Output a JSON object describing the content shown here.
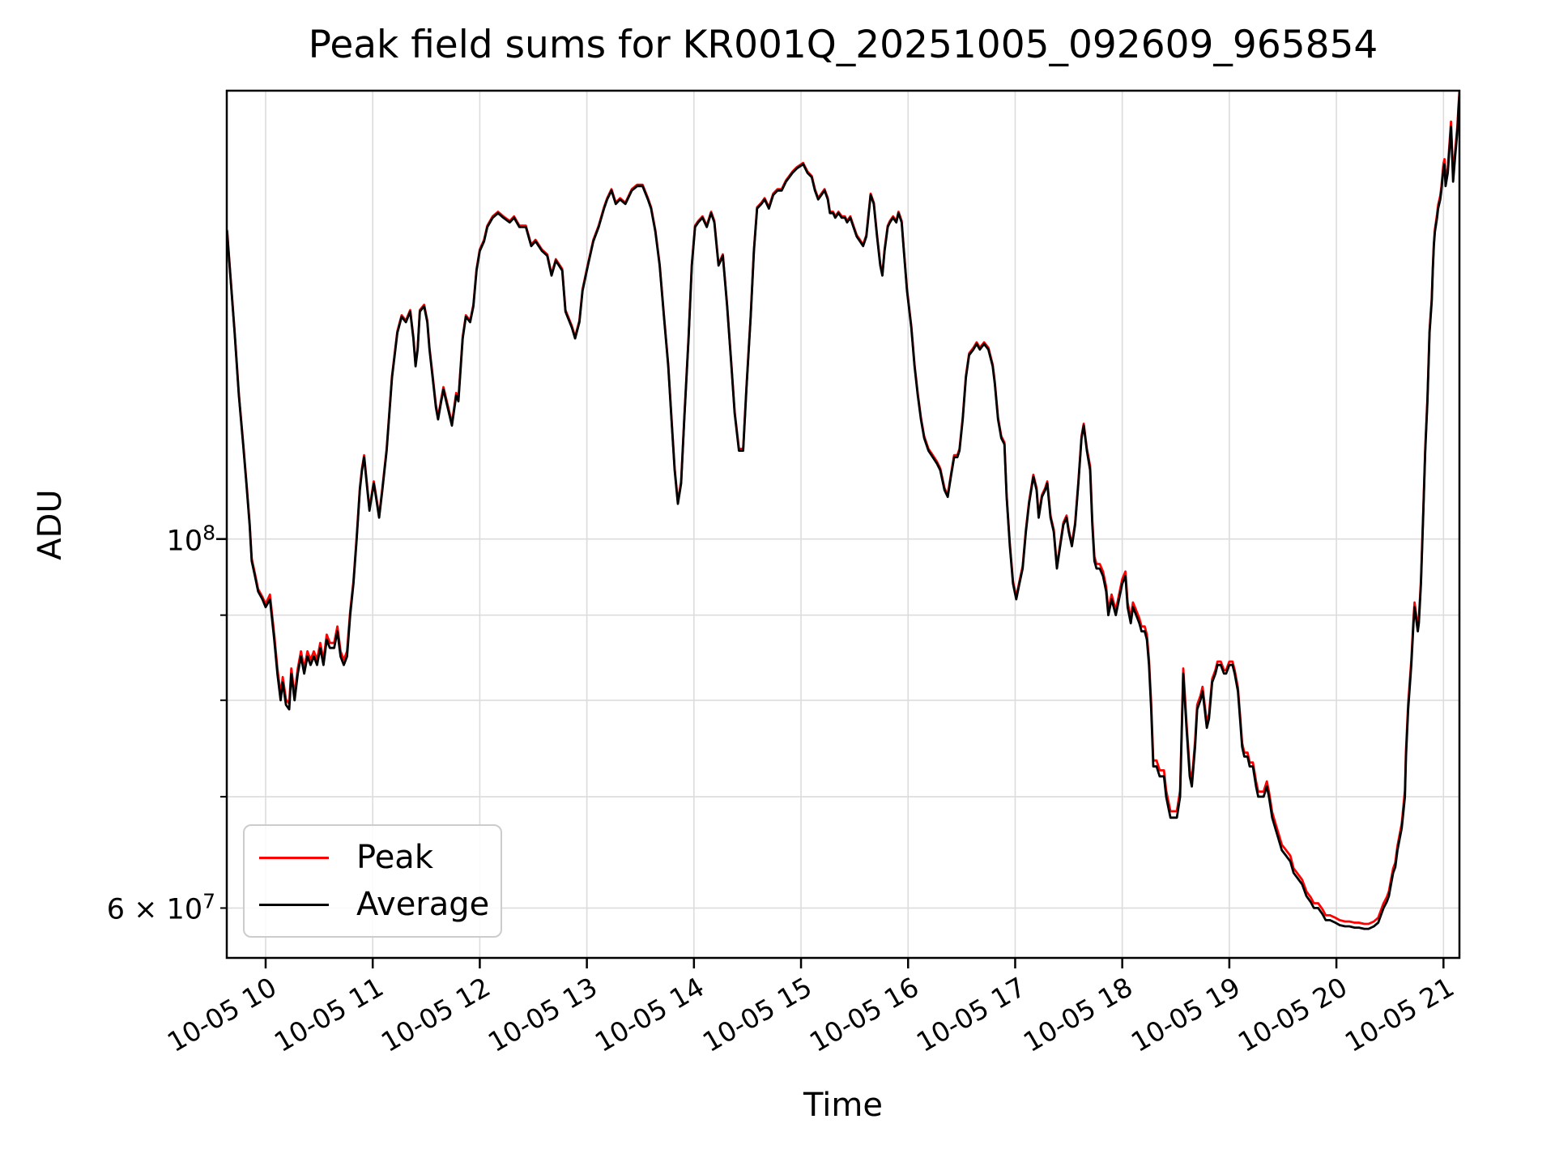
{
  "figure": {
    "background": "#ffffff"
  },
  "chart_data": {
    "type": "line",
    "title": "Peak field sums for KR001Q_20251005_092609_965854",
    "xlabel": "Time",
    "ylabel": "ADU",
    "y_scale": "log",
    "values_unit_note": "series values are ADU in millions (1e6)",
    "ylim": [
      56,
      186
    ],
    "xlim": [
      9.637,
      21.149
    ],
    "grid": true,
    "grid_color": "#dcdcdc",
    "axis_color": "#000000",
    "legend_position": "lower-left",
    "x_ticks": [
      {
        "value": 10,
        "label": "10-05 10"
      },
      {
        "value": 11,
        "label": "10-05 11"
      },
      {
        "value": 12,
        "label": "10-05 12"
      },
      {
        "value": 13,
        "label": "10-05 13"
      },
      {
        "value": 14,
        "label": "10-05 14"
      },
      {
        "value": 15,
        "label": "10-05 15"
      },
      {
        "value": 16,
        "label": "10-05 16"
      },
      {
        "value": 17,
        "label": "10-05 17"
      },
      {
        "value": 18,
        "label": "10-05 18"
      },
      {
        "value": 19,
        "label": "10-05 19"
      },
      {
        "value": 20,
        "label": "10-05 20"
      },
      {
        "value": 21,
        "label": "10-05 21"
      }
    ],
    "y_ticks": [
      {
        "value": 100,
        "major": true,
        "mantissa": "",
        "exp": "8"
      },
      {
        "value": 90,
        "major": false
      },
      {
        "value": 80,
        "major": false
      },
      {
        "value": 70,
        "major": false
      },
      {
        "value": 60,
        "major": false,
        "mantissa": "6 × ",
        "exp": "7"
      }
    ],
    "x_hours": [
      9.64,
      9.67,
      9.71,
      9.75,
      9.79,
      9.82,
      9.85,
      9.87,
      9.9,
      9.93,
      9.97,
      10.0,
      10.04,
      10.08,
      10.11,
      10.14,
      10.16,
      10.19,
      10.22,
      10.24,
      10.27,
      10.3,
      10.33,
      10.36,
      10.39,
      10.42,
      10.45,
      10.48,
      10.51,
      10.54,
      10.57,
      10.6,
      10.64,
      10.67,
      10.7,
      10.73,
      10.76,
      10.79,
      10.82,
      10.85,
      10.88,
      10.9,
      10.92,
      10.95,
      10.97,
      11.01,
      11.03,
      11.06,
      11.09,
      11.13,
      11.18,
      11.23,
      11.27,
      11.31,
      11.35,
      11.38,
      11.4,
      11.42,
      11.44,
      11.48,
      11.51,
      11.53,
      11.56,
      11.59,
      11.61,
      11.64,
      11.66,
      11.7,
      11.74,
      11.78,
      11.8,
      11.84,
      11.87,
      11.91,
      11.94,
      11.97,
      12.0,
      12.04,
      12.07,
      12.12,
      12.17,
      12.22,
      12.28,
      12.32,
      12.37,
      12.43,
      12.48,
      12.52,
      12.58,
      12.63,
      12.67,
      12.71,
      12.77,
      12.8,
      12.86,
      12.89,
      12.93,
      12.96,
      13.01,
      13.06,
      13.11,
      13.16,
      13.19,
      13.23,
      13.27,
      13.31,
      13.36,
      13.42,
      13.47,
      13.52,
      13.57,
      13.6,
      13.64,
      13.68,
      13.72,
      13.76,
      13.79,
      13.82,
      13.85,
      13.88,
      13.91,
      13.95,
      13.98,
      14.01,
      14.04,
      14.08,
      14.12,
      14.16,
      14.19,
      14.23,
      14.27,
      14.31,
      14.35,
      14.38,
      14.42,
      14.46,
      14.49,
      14.53,
      14.56,
      14.59,
      14.63,
      14.66,
      14.7,
      14.74,
      14.78,
      14.82,
      14.86,
      14.89,
      14.92,
      14.96,
      15.02,
      15.06,
      15.1,
      15.13,
      15.16,
      15.19,
      15.22,
      15.25,
      15.27,
      15.3,
      15.32,
      15.35,
      15.38,
      15.41,
      15.43,
      15.46,
      15.49,
      15.52,
      15.55,
      15.58,
      15.61,
      15.65,
      15.68,
      15.71,
      15.74,
      15.76,
      15.78,
      15.81,
      15.83,
      15.86,
      15.89,
      15.91,
      15.94,
      15.96,
      15.99,
      16.03,
      16.06,
      16.09,
      16.12,
      16.15,
      16.19,
      16.23,
      16.27,
      16.3,
      16.34,
      16.37,
      16.4,
      16.43,
      16.46,
      16.48,
      16.51,
      16.54,
      16.57,
      16.61,
      16.64,
      16.67,
      16.71,
      16.75,
      16.79,
      16.81,
      16.84,
      16.87,
      16.9,
      16.92,
      16.95,
      16.98,
      17.01,
      17.04,
      17.07,
      17.1,
      17.13,
      17.17,
      17.2,
      17.22,
      17.25,
      17.28,
      17.3,
      17.33,
      17.36,
      17.39,
      17.42,
      17.45,
      17.48,
      17.5,
      17.53,
      17.56,
      17.59,
      17.62,
      17.64,
      17.67,
      17.7,
      17.72,
      17.74,
      17.76,
      17.79,
      17.82,
      17.85,
      17.87,
      17.9,
      17.92,
      17.94,
      17.97,
      18.0,
      18.03,
      18.05,
      18.08,
      18.1,
      18.13,
      18.16,
      18.18,
      18.21,
      18.23,
      18.25,
      18.27,
      18.29,
      18.32,
      18.35,
      18.39,
      18.41,
      18.43,
      18.45,
      18.48,
      18.51,
      18.54,
      18.57,
      18.6,
      18.63,
      18.65,
      18.68,
      18.7,
      18.73,
      18.75,
      18.77,
      18.79,
      18.81,
      18.84,
      18.87,
      18.89,
      18.92,
      18.95,
      18.97,
      19.0,
      19.03,
      19.05,
      19.08,
      19.1,
      19.12,
      19.14,
      19.17,
      19.19,
      19.22,
      19.25,
      19.27,
      19.29,
      19.32,
      19.35,
      19.37,
      19.4,
      19.43,
      19.46,
      19.49,
      19.53,
      19.57,
      19.6,
      19.64,
      19.68,
      19.72,
      19.76,
      19.79,
      19.83,
      19.87,
      19.9,
      19.94,
      19.99,
      20.03,
      20.08,
      20.12,
      20.17,
      20.21,
      20.26,
      20.3,
      20.35,
      20.39,
      20.44,
      20.47,
      20.49,
      20.51,
      20.53,
      20.55,
      20.57,
      20.59,
      20.61,
      20.62,
      20.64,
      20.65,
      20.67,
      20.7,
      20.72,
      20.73,
      20.76,
      20.77,
      20.79,
      20.81,
      20.83,
      20.85,
      20.87,
      20.89,
      20.9,
      20.91,
      20.92,
      20.94,
      20.95,
      20.97,
      20.98,
      21.0,
      21.01,
      21.02,
      21.04,
      21.06,
      21.07,
      21.09,
      21.11,
      21.13,
      21.14,
      21.15
    ],
    "series": [
      {
        "name": "Peak",
        "color": "#ff0000",
        "values": [
          153.3,
          144.3,
          133.3,
          122.3,
          114.3,
          108.3,
          102.3,
          97.3,
          95.3,
          93.3,
          92.3,
          91.4,
          92.6,
          87.6,
          83.6,
          80.6,
          82.6,
          80.1,
          79.6,
          83.6,
          80.6,
          83.6,
          85.6,
          83.6,
          85.6,
          84.6,
          85.6,
          84.6,
          86.6,
          84.6,
          87.6,
          86.6,
          86.6,
          88.6,
          85.6,
          84.6,
          85.6,
          90.5,
          94.3,
          100.3,
          107.3,
          110.3,
          112.3,
          107.3,
          104.3,
          108.3,
          106.3,
          103.3,
          107.3,
          113.3,
          125.3,
          133.3,
          136.3,
          135.3,
          137.3,
          132.3,
          127.3,
          130.3,
          137.3,
          138.3,
          135.3,
          130.3,
          125.4,
          120.4,
          118.4,
          121.4,
          123.4,
          120.4,
          117.4,
          122.4,
          121.4,
          132.3,
          136.3,
          135.3,
          138.3,
          145.3,
          149.3,
          151.3,
          154.3,
          156.3,
          157.3,
          156.3,
          155.3,
          156.3,
          154.3,
          154.3,
          150.3,
          151.3,
          149.3,
          148.3,
          144.3,
          147.3,
          145.3,
          137.3,
          134.3,
          132.3,
          135.3,
          141.3,
          146.3,
          151.3,
          154.3,
          158.3,
          160.3,
          162.3,
          159.3,
          160.3,
          159.3,
          162.3,
          163.3,
          163.3,
          160.3,
          158.3,
          153.3,
          146.3,
          136.3,
          127.3,
          118.3,
          110.3,
          105.3,
          108.3,
          118.3,
          132.3,
          146.3,
          154.3,
          155.3,
          156.3,
          154.3,
          157.3,
          155.3,
          146.3,
          148.3,
          138.3,
          127.3,
          119.3,
          113.3,
          113.3,
          123.3,
          136.3,
          149.3,
          158.3,
          159.3,
          160.3,
          158.3,
          161.3,
          162.3,
          162.3,
          164.3,
          165.3,
          166.3,
          167.3,
          168.3,
          166.3,
          165.3,
          162.3,
          160.3,
          161.3,
          162.3,
          160.3,
          157.3,
          157.3,
          156.3,
          157.3,
          156.3,
          156.3,
          155.3,
          156.3,
          154.3,
          152.3,
          151.3,
          150.3,
          152.3,
          161.3,
          159.3,
          152.3,
          146.3,
          144.3,
          149.3,
          154.3,
          155.3,
          156.3,
          155.3,
          157.3,
          155.3,
          149.3,
          141.3,
          134.3,
          127.3,
          122.3,
          118.3,
          115.3,
          113.3,
          112.3,
          111.3,
          110.3,
          107.3,
          106.3,
          109.3,
          112.3,
          112.3,
          113.3,
          118.3,
          125.3,
          129.3,
          130.3,
          131.3,
          130.3,
          131.3,
          130.3,
          127.3,
          124.3,
          118.3,
          115.3,
          114.3,
          106.3,
          99.3,
          94.3,
          92.3,
          94.3,
          96.3,
          101.3,
          105.3,
          109.3,
          107.3,
          103.3,
          106.3,
          107.3,
          108.3,
          103.3,
          101.3,
          96.3,
          99.3,
          102.3,
          103.3,
          101.3,
          99.3,
          102.3,
          108.3,
          115.3,
          117.3,
          113.3,
          110.6,
          102.6,
          97.6,
          96.6,
          96.6,
          95.6,
          93.6,
          90.6,
          92.6,
          91.6,
          90.6,
          92.6,
          94.6,
          95.6,
          91.6,
          89.6,
          91.6,
          90.6,
          89.6,
          88.6,
          88.6,
          87.6,
          84.6,
          79.6,
          73.6,
          73.6,
          72.6,
          72.6,
          70.6,
          69.6,
          68.6,
          68.6,
          68.6,
          70.6,
          83.6,
          77.6,
          72.6,
          71.6,
          75.6,
          79.5,
          80.5,
          81.5,
          79.5,
          77.5,
          78.5,
          82.4,
          83.4,
          84.4,
          84.4,
          83.4,
          83.4,
          84.4,
          84.4,
          83.4,
          81.4,
          78.4,
          75.4,
          74.4,
          74.4,
          73.4,
          73.4,
          71.5,
          70.5,
          70.5,
          70.5,
          71.5,
          70.5,
          68.5,
          67.5,
          66.5,
          65.5,
          65.0,
          64.5,
          63.4,
          62.9,
          62.4,
          61.4,
          60.9,
          60.4,
          60.4,
          59.9,
          59.4,
          59.4,
          59.2,
          59.0,
          58.9,
          58.9,
          58.8,
          58.8,
          58.7,
          58.7,
          58.9,
          59.2,
          60.4,
          60.9,
          61.4,
          62.4,
          63.4,
          63.9,
          65.4,
          66.4,
          67.4,
          68.5,
          70.6,
          74.6,
          79.6,
          84.6,
          89.6,
          91.6,
          88.6,
          89.6,
          94.5,
          103.5,
          113.5,
          121.5,
          133.5,
          139.5,
          145.5,
          150.5,
          153.5,
          156.8,
          158.8,
          160.8,
          162.8,
          168.2,
          169.2,
          164.2,
          167.2,
          174.2,
          178.2,
          165.2,
          171.2,
          177.2,
          182.0,
          186.0
        ]
      },
      {
        "name": "Average",
        "color": "#000000",
        "values": [
          153,
          144,
          133,
          122,
          114,
          108,
          102,
          97,
          95,
          93,
          92,
          91,
          92,
          87,
          83,
          80,
          82,
          79.5,
          79,
          83,
          80,
          83,
          85,
          83,
          85,
          84,
          85,
          84,
          86,
          84,
          87,
          86,
          86,
          88,
          85,
          84,
          85,
          90,
          94,
          100,
          107,
          110,
          112,
          107,
          104,
          108,
          106,
          103,
          107,
          113,
          125,
          133,
          136,
          135,
          137,
          132,
          127,
          130,
          137,
          138,
          135,
          130,
          125,
          120,
          118,
          121,
          123,
          120,
          117,
          122,
          121,
          132,
          136,
          135,
          138,
          145,
          149,
          151,
          154,
          156,
          157,
          156,
          155,
          156,
          154,
          154,
          150,
          151,
          149,
          148,
          144,
          147,
          145,
          137,
          134,
          132,
          135,
          141,
          146,
          151,
          154,
          158,
          160,
          162,
          159,
          160,
          159,
          162,
          163,
          163,
          160,
          158,
          153,
          146,
          136,
          127,
          118,
          110,
          105,
          108,
          118,
          132,
          146,
          154,
          155,
          156,
          154,
          157,
          155,
          146,
          148,
          138,
          127,
          119,
          113,
          113,
          123,
          136,
          149,
          158,
          159,
          160,
          158,
          161,
          162,
          162,
          164,
          165,
          166,
          167,
          168,
          166,
          165,
          162,
          160,
          161,
          162,
          160,
          157,
          157,
          156,
          157,
          156,
          156,
          155,
          156,
          154,
          152,
          151,
          150,
          152,
          161,
          159,
          152,
          146,
          144,
          149,
          154,
          155,
          156,
          155,
          157,
          155,
          149,
          141,
          134,
          127,
          122,
          118,
          115,
          113,
          112,
          111,
          110,
          107,
          106,
          109,
          112,
          112,
          113,
          118,
          125,
          129,
          130,
          131,
          130,
          131,
          130,
          127,
          124,
          118,
          115,
          114,
          106,
          99,
          94,
          92,
          94,
          96,
          101,
          105,
          109,
          107,
          103,
          106,
          107,
          108,
          103,
          101,
          96,
          99,
          102,
          103,
          101,
          99,
          102,
          108,
          115,
          117,
          113,
          110,
          102,
          97,
          96,
          96,
          95,
          93,
          90,
          92,
          91,
          90,
          92,
          94,
          95,
          91,
          89,
          91,
          90,
          89,
          88,
          88,
          87,
          84,
          79,
          73,
          73,
          72,
          72,
          70,
          69,
          68,
          68,
          68,
          70,
          83,
          77,
          72,
          71,
          75,
          79,
          80,
          81,
          79,
          77,
          78,
          82,
          83,
          84,
          84,
          83,
          83,
          84,
          84,
          83,
          81,
          78,
          75,
          74,
          74,
          73,
          73,
          71,
          70,
          70,
          70,
          71,
          70,
          68,
          67,
          66,
          65,
          64.5,
          64,
          63,
          62.5,
          62,
          61,
          60.5,
          60,
          60,
          59.5,
          59,
          59,
          58.8,
          58.6,
          58.5,
          58.5,
          58.4,
          58.4,
          58.3,
          58.3,
          58.5,
          58.8,
          60,
          60.5,
          61,
          62,
          63,
          63.5,
          65,
          66,
          67,
          68,
          70,
          74,
          79,
          84,
          89,
          91,
          88,
          89,
          94,
          103,
          113,
          121,
          133,
          139,
          145,
          150,
          153,
          156,
          158,
          160,
          162,
          167,
          168,
          163,
          166,
          173,
          177,
          164,
          170,
          176,
          181,
          185.5
        ]
      }
    ]
  }
}
